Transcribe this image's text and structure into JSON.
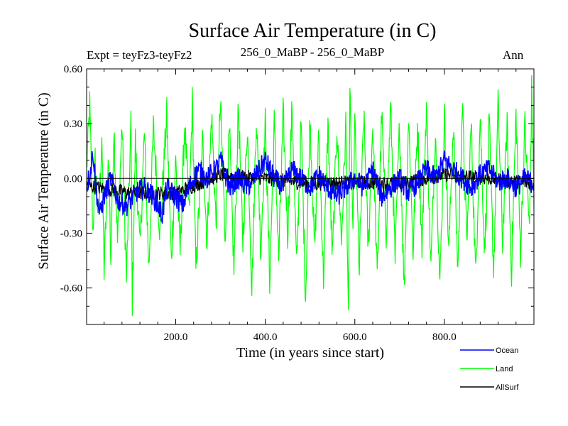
{
  "chart_data": {
    "type": "line",
    "title": "Surface Air Temperature (in C)",
    "subtitle_left": "Expt = teyFz3-teyFz2",
    "subtitle_center": "256_0_MaBP - 256_0_MaBP",
    "subtitle_right": "Ann",
    "xlabel": "Time (in years since start)",
    "ylabel": "Surface Air Temperature (in C)",
    "xlim": [
      1,
      1000
    ],
    "ylim": [
      -0.8,
      0.6
    ],
    "x_ticks": [
      200,
      400,
      600,
      800
    ],
    "x_tick_labels": [
      "200.0",
      "400.0",
      "600.0",
      "800.0"
    ],
    "y_ticks": [
      0.6,
      0.3,
      0.0,
      -0.3,
      -0.6
    ],
    "y_tick_labels": [
      "0.60",
      "0.30",
      "0.00",
      "-0.30",
      "-0.60"
    ],
    "zero_line": 0.0,
    "series": [
      {
        "name": "Land",
        "color": "#00ff00",
        "anchors": [
          [
            1,
            0.05
          ],
          [
            8,
            0.4
          ],
          [
            15,
            -0.3
          ],
          [
            20,
            0.1
          ],
          [
            28,
            -0.25
          ],
          [
            35,
            0.25
          ],
          [
            40,
            -0.5
          ],
          [
            50,
            0.15
          ],
          [
            55,
            -0.45
          ],
          [
            62,
            0.3
          ],
          [
            70,
            -0.35
          ],
          [
            80,
            0.3
          ],
          [
            90,
            -0.55
          ],
          [
            100,
            0.3
          ],
          [
            103,
            -0.67
          ],
          [
            110,
            0.2
          ],
          [
            120,
            -0.4
          ],
          [
            130,
            0.25
          ],
          [
            140,
            -0.5
          ],
          [
            150,
            0.28
          ],
          [
            165,
            -0.3
          ],
          [
            180,
            0.35
          ],
          [
            190,
            -0.45
          ],
          [
            200,
            0.1
          ],
          [
            210,
            -0.4
          ],
          [
            220,
            0.3
          ],
          [
            230,
            -0.2
          ],
          [
            237,
            0.42
          ],
          [
            245,
            -0.5
          ],
          [
            260,
            0.2
          ],
          [
            270,
            -0.35
          ],
          [
            280,
            0.35
          ],
          [
            290,
            -0.25
          ],
          [
            300,
            0.4
          ],
          [
            310,
            -0.3
          ],
          [
            320,
            0.25
          ],
          [
            330,
            -0.5
          ],
          [
            340,
            0.4
          ],
          [
            350,
            -0.35
          ],
          [
            360,
            0.3
          ],
          [
            370,
            -0.6
          ],
          [
            380,
            0.35
          ],
          [
            390,
            -0.4
          ],
          [
            400,
            0.3
          ],
          [
            410,
            -0.55
          ],
          [
            420,
            0.3
          ],
          [
            430,
            -0.45
          ],
          [
            440,
            0.35
          ],
          [
            450,
            -0.3
          ],
          [
            460,
            0.4
          ],
          [
            470,
            -0.5
          ],
          [
            480,
            0.3
          ],
          [
            490,
            -0.65
          ],
          [
            500,
            0.35
          ],
          [
            510,
            -0.4
          ],
          [
            520,
            0.25
          ],
          [
            530,
            -0.55
          ],
          [
            540,
            0.3
          ],
          [
            550,
            -0.45
          ],
          [
            560,
            0.3
          ],
          [
            570,
            -0.35
          ],
          [
            580,
            0.3
          ],
          [
            586,
            -0.82
          ],
          [
            589,
            0.56
          ],
          [
            595,
            -0.3
          ],
          [
            600,
            0.3
          ],
          [
            610,
            -0.5
          ],
          [
            620,
            0.35
          ],
          [
            630,
            -0.4
          ],
          [
            640,
            0.3
          ],
          [
            650,
            -0.55
          ],
          [
            660,
            0.35
          ],
          [
            670,
            -0.3
          ],
          [
            680,
            0.4
          ],
          [
            690,
            -0.45
          ],
          [
            700,
            0.3
          ],
          [
            710,
            -0.6
          ],
          [
            720,
            0.35
          ],
          [
            730,
            -0.4
          ],
          [
            740,
            0.3
          ],
          [
            750,
            -0.35
          ],
          [
            760,
            0.4
          ],
          [
            770,
            -0.5
          ],
          [
            780,
            0.3
          ],
          [
            790,
            -0.6
          ],
          [
            800,
            0.35
          ],
          [
            810,
            -0.4
          ],
          [
            820,
            0.3
          ],
          [
            830,
            -0.5
          ],
          [
            840,
            0.4
          ],
          [
            850,
            -0.35
          ],
          [
            860,
            0.3
          ],
          [
            870,
            -0.55
          ],
          [
            880,
            0.35
          ],
          [
            890,
            -0.4
          ],
          [
            900,
            0.3
          ],
          [
            910,
            -0.5
          ],
          [
            920,
            0.4
          ],
          [
            930,
            -0.35
          ],
          [
            940,
            0.3
          ],
          [
            950,
            -0.5
          ],
          [
            960,
            0.35
          ],
          [
            970,
            -0.4
          ],
          [
            980,
            0.3
          ],
          [
            990,
            -0.3
          ],
          [
            995,
            0.48
          ],
          [
            1000,
            -0.1
          ]
        ]
      },
      {
        "name": "Ocean",
        "color": "#0000ff",
        "anchors": [
          [
            1,
            -0.05
          ],
          [
            10,
            0.05
          ],
          [
            15,
            0.15
          ],
          [
            22,
            -0.05
          ],
          [
            30,
            -0.2
          ],
          [
            40,
            -0.1
          ],
          [
            55,
            0.0
          ],
          [
            70,
            -0.12
          ],
          [
            90,
            -0.15
          ],
          [
            110,
            -0.08
          ],
          [
            130,
            -0.05
          ],
          [
            150,
            -0.1
          ],
          [
            170,
            -0.2
          ],
          [
            180,
            -0.05
          ],
          [
            200,
            -0.1
          ],
          [
            215,
            -0.15
          ],
          [
            230,
            -0.05
          ],
          [
            250,
            0.05
          ],
          [
            270,
            0.0
          ],
          [
            290,
            0.05
          ],
          [
            300,
            0.1
          ],
          [
            320,
            -0.05
          ],
          [
            340,
            0.0
          ],
          [
            360,
            -0.05
          ],
          [
            380,
            0.02
          ],
          [
            400,
            0.1
          ],
          [
            420,
            0.0
          ],
          [
            440,
            -0.05
          ],
          [
            460,
            0.05
          ],
          [
            480,
            0.0
          ],
          [
            500,
            -0.05
          ],
          [
            520,
            0.02
          ],
          [
            540,
            -0.05
          ],
          [
            560,
            -0.1
          ],
          [
            580,
            -0.05
          ],
          [
            600,
            0.0
          ],
          [
            620,
            -0.05
          ],
          [
            640,
            0.05
          ],
          [
            660,
            -0.1
          ],
          [
            680,
            -0.05
          ],
          [
            700,
            0.0
          ],
          [
            720,
            -0.08
          ],
          [
            740,
            -0.02
          ],
          [
            760,
            0.05
          ],
          [
            780,
            0.0
          ],
          [
            800,
            0.1
          ],
          [
            820,
            0.05
          ],
          [
            840,
            0.0
          ],
          [
            860,
            -0.05
          ],
          [
            880,
            0.02
          ],
          [
            900,
            0.05
          ],
          [
            920,
            -0.02
          ],
          [
            940,
            0.0
          ],
          [
            960,
            -0.05
          ],
          [
            980,
            0.0
          ],
          [
            1000,
            -0.03
          ]
        ]
      },
      {
        "name": "AllSurf",
        "color": "#000000",
        "anchors": [
          [
            1,
            -0.04
          ],
          [
            100,
            -0.08
          ],
          [
            200,
            -0.08
          ],
          [
            300,
            0.02
          ],
          [
            400,
            0.0
          ],
          [
            500,
            -0.03
          ],
          [
            600,
            -0.02
          ],
          [
            700,
            -0.03
          ],
          [
            800,
            0.02
          ],
          [
            900,
            0.0
          ],
          [
            1000,
            -0.03
          ]
        ]
      }
    ],
    "legend_position": "bottom-right"
  }
}
